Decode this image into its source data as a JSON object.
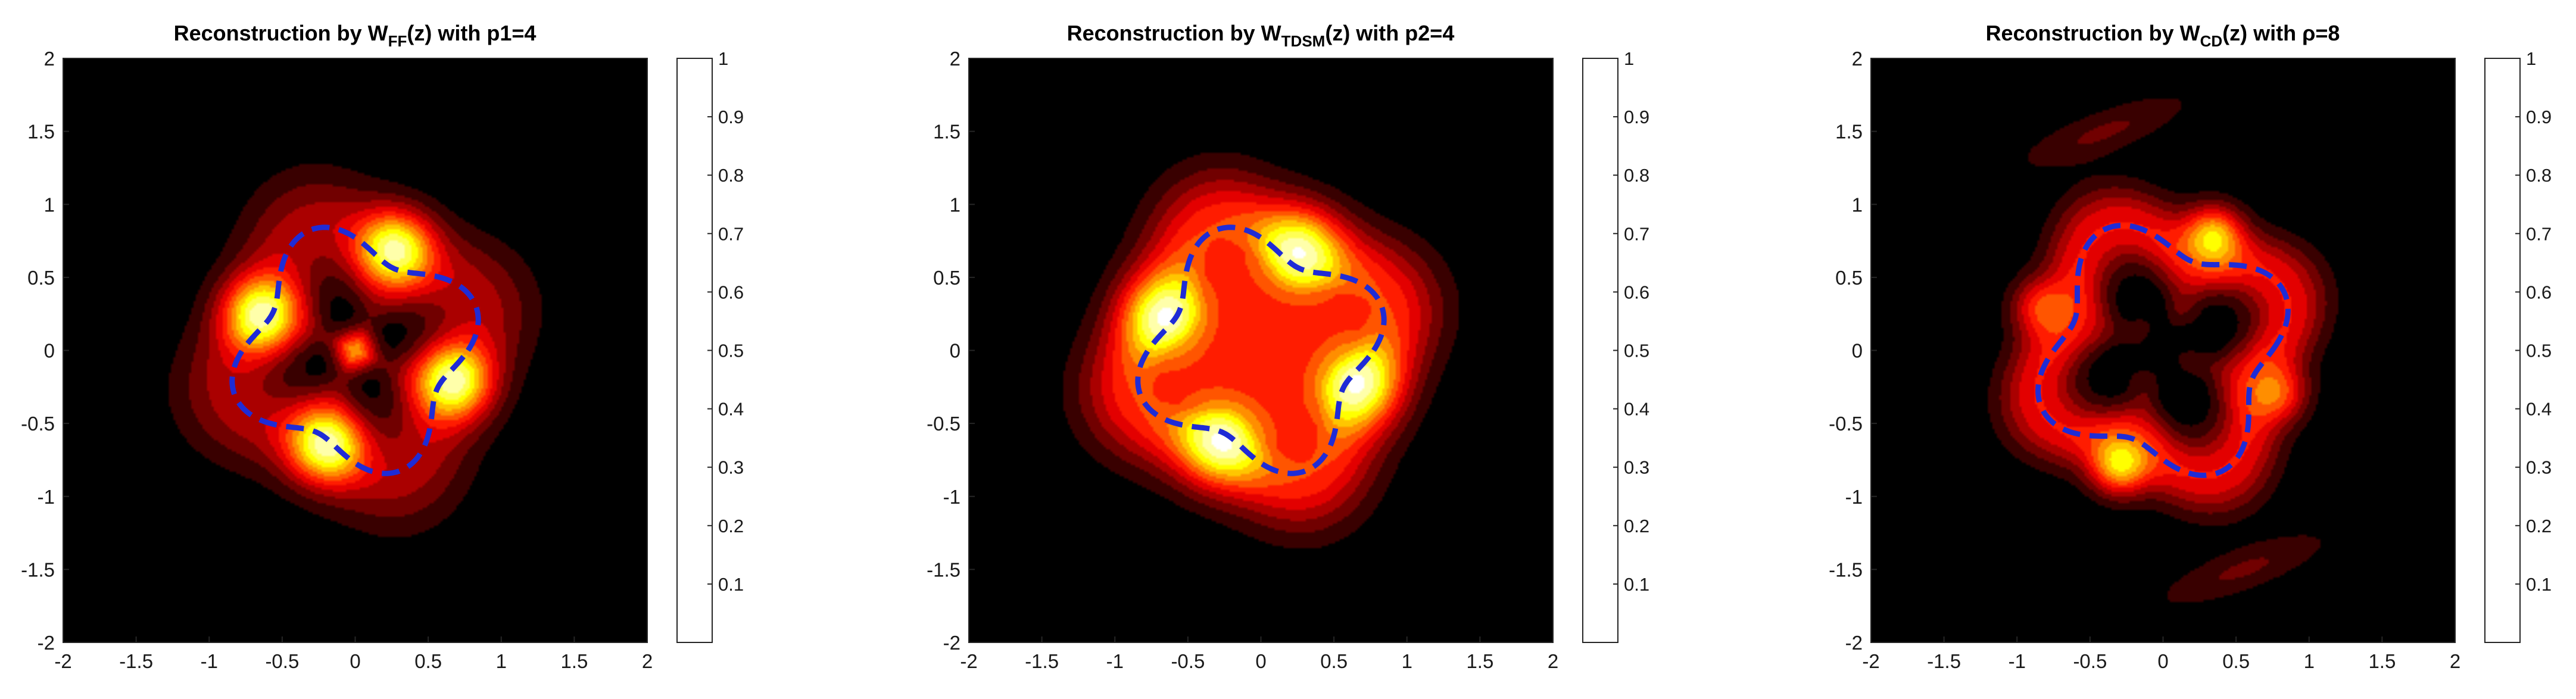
{
  "colors": {
    "boundary_curve": "#1f2bd6",
    "colormap_low": "#000000",
    "colormap_high": "#ffffff"
  },
  "chart_data": [
    {
      "type": "heatmap",
      "title_parts": {
        "pre": "Reconstruction by W",
        "sub": "FF",
        "post": "(z) with p1=4"
      },
      "x_ticks": [
        "-2",
        "-1.5",
        "-1",
        "-0.5",
        "0",
        "0.5",
        "1",
        "1.5",
        "2"
      ],
      "y_ticks": [
        "2",
        "1.5",
        "1",
        "0.5",
        "0",
        "-0.5",
        "-1",
        "-1.5",
        "-2"
      ],
      "xlim": [
        -2,
        2
      ],
      "ylim": [
        -2,
        2
      ],
      "colorbar_ticks": [
        "1",
        "0.9",
        "0.8",
        "0.7",
        "0.6",
        "0.5",
        "0.4",
        "0.3",
        "0.2",
        "0.1"
      ],
      "clim": [
        0,
        1
      ],
      "colormap": "hot",
      "field": {
        "frame_level": 0.3,
        "frame_width": 0.28,
        "hole_value": 0,
        "lobes": [
          {
            "x": 0.28,
            "y": 0.7,
            "amp": 0.7
          },
          {
            "x": -0.65,
            "y": 0.25,
            "amp": 0.7
          },
          {
            "x": -0.2,
            "y": -0.65,
            "amp": 0.7
          },
          {
            "x": 0.68,
            "y": -0.22,
            "amp": 0.7
          }
        ],
        "lobe_width": 0.18,
        "center_peak": {
          "x": 0,
          "y": 0,
          "amp": 0.62,
          "width": 0.1
        }
      },
      "boundary_curve": {
        "style": "dashed",
        "r0": 0.75,
        "amp": 0.13,
        "k": 4,
        "phase": 0.35
      }
    },
    {
      "type": "heatmap",
      "title_parts": {
        "pre": "Reconstruction by W",
        "sub": "TDSM",
        "post": "(z) with p2=4"
      },
      "x_ticks": [
        "-2",
        "-1.5",
        "-1",
        "-0.5",
        "0",
        "0.5",
        "1",
        "1.5",
        "2"
      ],
      "y_ticks": [
        "2",
        "1.5",
        "1",
        "0.5",
        "0",
        "-0.5",
        "-1",
        "-1.5",
        "-2"
      ],
      "xlim": [
        -2,
        2
      ],
      "ylim": [
        -2,
        2
      ],
      "colorbar_ticks": [
        "1",
        "0.9",
        "0.8",
        "0.7",
        "0.6",
        "0.5",
        "0.4",
        "0.3",
        "0.2",
        "0.1"
      ],
      "clim": [
        0,
        1
      ],
      "colormap": "hot",
      "field": {
        "frame_level": 0.5,
        "frame_width": 0.28,
        "hole_value": 0.42,
        "lobes": [
          {
            "x": 0.28,
            "y": 0.7,
            "amp": 0.55
          },
          {
            "x": -0.68,
            "y": 0.25,
            "amp": 0.55
          },
          {
            "x": -0.28,
            "y": -0.65,
            "amp": 0.55
          },
          {
            "x": 0.68,
            "y": -0.25,
            "amp": 0.55
          }
        ],
        "lobe_width": 0.2,
        "center_peak": null
      },
      "boundary_curve": {
        "style": "dashed",
        "r0": 0.75,
        "amp": 0.13,
        "k": 4,
        "phase": 0.35
      }
    },
    {
      "type": "heatmap",
      "title_parts": {
        "pre": "Reconstruction by W",
        "sub": "CD",
        "post": "(z) with ρ=8"
      },
      "x_ticks": [
        "-2",
        "-1.5",
        "-1",
        "-0.5",
        "0",
        "0.5",
        "1",
        "1.5",
        "2"
      ],
      "y_ticks": [
        "2",
        "1.5",
        "1",
        "0.5",
        "0",
        "-0.5",
        "-1",
        "-1.5",
        "-2"
      ],
      "xlim": [
        -2,
        2
      ],
      "ylim": [
        -2,
        2
      ],
      "colorbar_ticks": [
        "1",
        "0.9",
        "0.8",
        "0.7",
        "0.6",
        "0.5",
        "0.4",
        "0.3",
        "0.2",
        "0.1"
      ],
      "clim": [
        0,
        1
      ],
      "colormap": "hot",
      "field": {
        "frame_level": 0.42,
        "frame_width": 0.2,
        "hole_value": 0,
        "lobes": [
          {
            "x": 0.35,
            "y": 0.8,
            "amp": 0.55
          },
          {
            "x": -0.85,
            "y": 0.3,
            "amp": 0.35
          },
          {
            "x": -0.3,
            "y": -0.8,
            "amp": 0.55
          },
          {
            "x": 0.8,
            "y": -0.3,
            "amp": 0.35
          }
        ],
        "lobe_width": 0.14,
        "center_peak": null,
        "blobs": [
          {
            "x": -0.4,
            "y": 1.5,
            "amp": 0.18,
            "sx": 0.45,
            "sy": 0.11,
            "rot": 20
          },
          {
            "x": 0.55,
            "y": -1.5,
            "amp": 0.18,
            "sx": 0.45,
            "sy": 0.11,
            "rot": 20
          },
          {
            "x": -0.15,
            "y": 0.15,
            "amp": 0.1,
            "sx": 0.09,
            "sy": 0.09,
            "rot": 0
          },
          {
            "x": 0.15,
            "y": 0.25,
            "amp": 0.1,
            "sx": 0.09,
            "sy": 0.09,
            "rot": 0
          },
          {
            "x": -0.15,
            "y": -0.2,
            "amp": 0.1,
            "sx": 0.09,
            "sy": 0.09,
            "rot": 0
          },
          {
            "x": 0.18,
            "y": -0.08,
            "amp": 0.1,
            "sx": 0.09,
            "sy": 0.09,
            "rot": 0
          }
        ]
      },
      "boundary_curve": {
        "style": "dashed",
        "r0": 0.78,
        "amp": 0.14,
        "k": 4,
        "phase": 0.45
      }
    }
  ]
}
